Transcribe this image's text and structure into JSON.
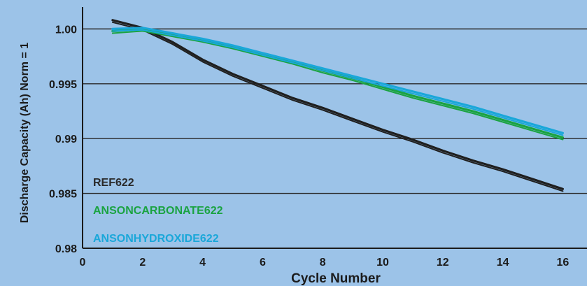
{
  "chart_data": {
    "type": "line",
    "title": "",
    "xlabel": "Cycle Number",
    "ylabel": "Discharge Capacity (Ah) Norm = 1",
    "xlim": [
      0,
      16
    ],
    "ylim": [
      0.98,
      1.002
    ],
    "x_ticks": [
      {
        "value": 0,
        "label": "0"
      },
      {
        "value": 2,
        "label": "2"
      },
      {
        "value": 4,
        "label": "4"
      },
      {
        "value": 6,
        "label": "6"
      },
      {
        "value": 8,
        "label": "8"
      },
      {
        "value": 10,
        "label": "10"
      },
      {
        "value": 12,
        "label": "12"
      },
      {
        "value": 14,
        "label": "14"
      },
      {
        "value": 16,
        "label": "16"
      }
    ],
    "y_ticks": [
      {
        "value": 1.0,
        "label": "1.00"
      },
      {
        "value": 0.995,
        "label": "0.995"
      },
      {
        "value": 0.99,
        "label": "0.99"
      },
      {
        "value": 0.985,
        "label": "0.985"
      },
      {
        "value": 0.98,
        "label": "0.98"
      }
    ],
    "grid": {
      "horizontal": true,
      "vertical": false
    },
    "legend_position": "bottom-left",
    "series": [
      {
        "name": "REF622",
        "color": "#1f1f1f",
        "x": [
          1,
          2,
          3,
          4,
          5,
          6,
          7,
          8,
          9,
          10,
          11,
          12,
          13,
          14,
          15,
          16
        ],
        "values": [
          1.0008,
          1.0001,
          0.9988,
          0.9972,
          0.9959,
          0.9948,
          0.9937,
          0.9928,
          0.9918,
          0.9908,
          0.9899,
          0.9889,
          0.988,
          0.9872,
          0.9863,
          0.9854
        ]
      },
      {
        "name": "ANSONCARBONATE622",
        "color": "#1aa341",
        "x": [
          1,
          2,
          3,
          4,
          5,
          6,
          7,
          8,
          9,
          10,
          11,
          12,
          13,
          14,
          15,
          16
        ],
        "values": [
          0.9998,
          1.0,
          0.9995,
          0.999,
          0.9984,
          0.9977,
          0.997,
          0.9962,
          0.9955,
          0.9947,
          0.9939,
          0.9932,
          0.9925,
          0.9917,
          0.9909,
          0.9901
        ]
      },
      {
        "name": "ANSONHYDROXIDE622",
        "color": "#1aa7d9",
        "x": [
          1,
          2,
          3,
          4,
          5,
          6,
          7,
          8,
          9,
          10,
          11,
          12,
          13,
          14,
          15,
          16
        ],
        "values": [
          1.0,
          1.0001,
          0.9996,
          0.9991,
          0.9985,
          0.9978,
          0.9971,
          0.9964,
          0.9957,
          0.995,
          0.9943,
          0.9936,
          0.9929,
          0.9921,
          0.9913,
          0.9905
        ]
      }
    ]
  }
}
